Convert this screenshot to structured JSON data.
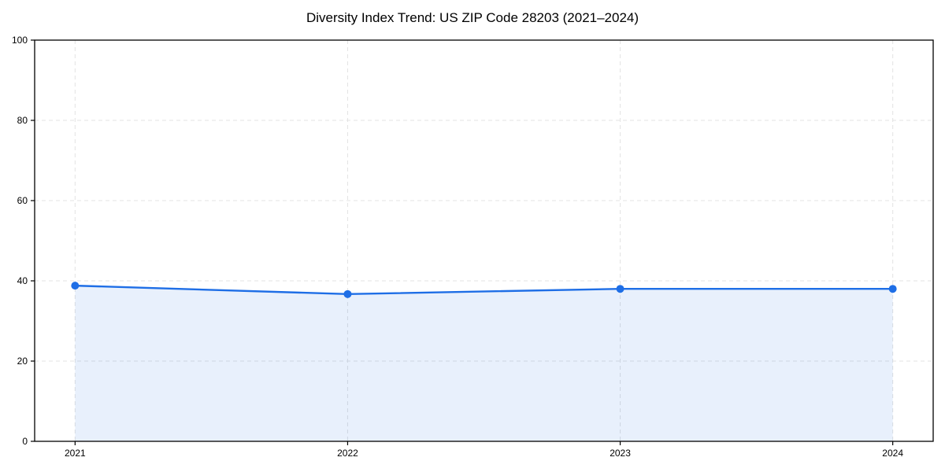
{
  "chart_data": {
    "type": "line",
    "title": "Diversity Index Trend: US ZIP Code 28203 (2021–2024)",
    "x": [
      "2021",
      "2022",
      "2023",
      "2024"
    ],
    "series": [
      {
        "name": "Diversity Index",
        "values": [
          38.8,
          36.7,
          38.0,
          38.0
        ]
      }
    ],
    "xlabel": "",
    "ylabel": "",
    "ylim": [
      0,
      100
    ],
    "yticks": [
      0,
      20,
      40,
      60,
      80,
      100
    ],
    "grid": "dashed-both-axes",
    "legend": "none",
    "area_fill": true,
    "marker": "circle",
    "colors": {
      "line": "#1e6ee6",
      "fill": "rgba(30,110,230,0.10)",
      "grid": "#e3e3e3",
      "axis": "#000000",
      "text": "#000000",
      "background": "#ffffff"
    }
  }
}
